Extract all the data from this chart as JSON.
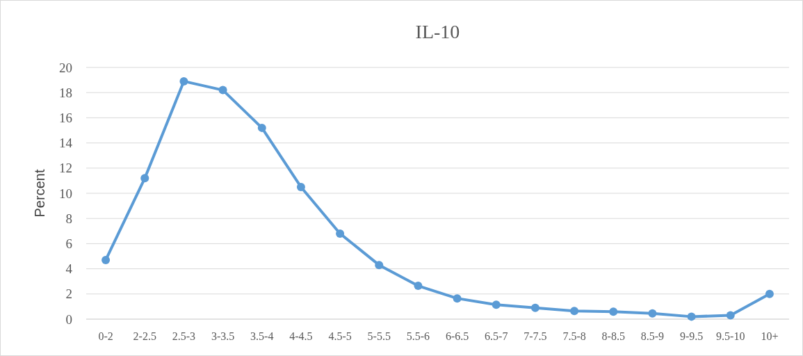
{
  "chart_data": {
    "type": "line",
    "title": "IL-10",
    "ylabel": "Percent",
    "categories": [
      "0-2",
      "2-2.5",
      "2.5-3",
      "3-3.5",
      "3.5-4",
      "4-4.5",
      "4.5-5",
      "5-5.5",
      "5.5-6",
      "6-6.5",
      "6.5-7",
      "7-7.5",
      "7.5-8",
      "8-8.5",
      "8.5-9",
      "9-9.5",
      "9.5-10",
      "10+"
    ],
    "series": [
      {
        "color": "#5b9bd5",
        "values": [
          4.7,
          11.2,
          18.9,
          18.2,
          15.2,
          10.5,
          6.8,
          4.3,
          2.65,
          1.65,
          1.15,
          0.9,
          0.65,
          0.6,
          0.45,
          0.2,
          0.3,
          2.0
        ]
      }
    ],
    "ylim": [
      0,
      20
    ],
    "yticks": [
      0,
      2,
      4,
      6,
      8,
      10,
      12,
      14,
      16,
      18,
      20
    ],
    "grid": "y",
    "marker": "circle"
  }
}
